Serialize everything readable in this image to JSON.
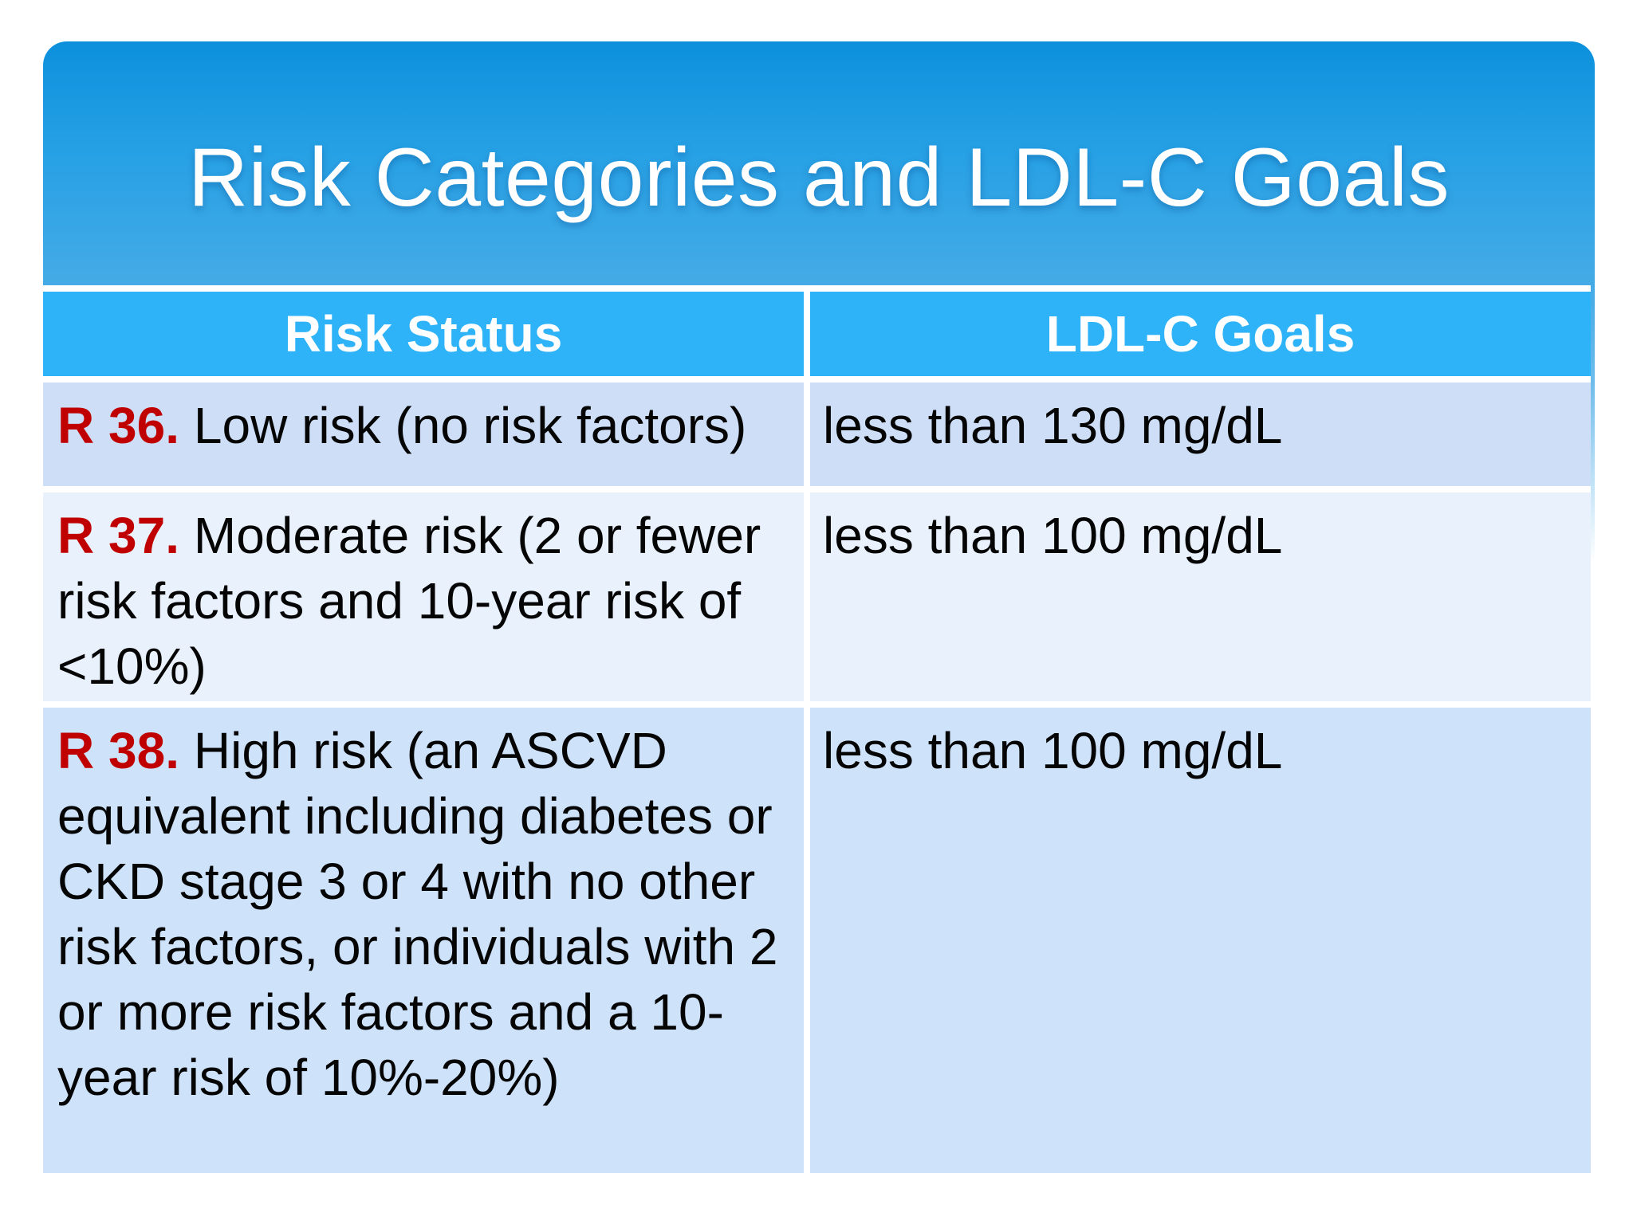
{
  "slide": {
    "title": "Risk Categories and LDL-C Goals",
    "colors": {
      "title_gradient_top": "#0c90dc",
      "title_gradient_bottom": "#46abe6",
      "header_bg": "#2eb2f8",
      "header_text": "#ffffff",
      "row1_bg": "#cddef6",
      "row2_bg": "#e9f1fc",
      "row3_bg": "#cee2fa",
      "code_red": "#c00000",
      "body_text": "#050505"
    }
  },
  "table": {
    "columns": [
      {
        "label": "Risk Status"
      },
      {
        "label": "LDL-C Goals"
      }
    ],
    "rows": [
      {
        "code": "R 36.",
        "risk_status": "Low risk (no risk factors)",
        "ldl_c_goal": "less than 130 mg/dL"
      },
      {
        "code": "R 37.",
        "risk_status": "Moderate risk (2 or fewer risk factors and 10-year risk of <10%)",
        "ldl_c_goal": "less than 100 mg/dL"
      },
      {
        "code": "R 38.",
        "risk_status": "High risk (an ASCVD equivalent including diabetes or CKD stage 3 or 4 with no other risk factors, or individuals with 2 or more risk factors and a 10-year risk of 10%-20%)",
        "ldl_c_goal": "less than 100 mg/dL"
      }
    ]
  }
}
